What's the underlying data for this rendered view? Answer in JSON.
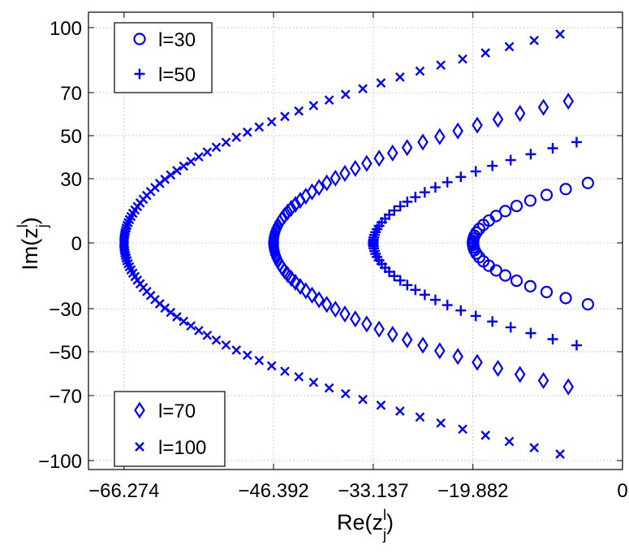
{
  "chart_data": {
    "type": "scatter",
    "title": "",
    "xlabel": {
      "main": "Re(z",
      "sup": "l",
      "sub": "j",
      "close": ")"
    },
    "ylabel": {
      "main": "Im(z",
      "sup": "l",
      "sub": "j",
      "close": ")"
    },
    "xlim": [
      -71,
      0
    ],
    "ylim": [
      -104,
      104
    ],
    "xticks": [
      -66.274,
      -46.392,
      -33.137,
      -19.882,
      0
    ],
    "xtick_labels": [
      "−66.274",
      "−46.392",
      "−33.137",
      "−19.882",
      "0"
    ],
    "yticks": [
      100,
      70,
      50,
      30,
      0,
      -30,
      -50,
      -70,
      -100
    ],
    "ytick_labels": [
      "100",
      "70",
      "50",
      "30",
      "0",
      "−30",
      "−50",
      "−70",
      "−100"
    ],
    "grid": true,
    "legends": [
      {
        "placement": "top-left",
        "entries": [
          "l=30",
          "l=50"
        ]
      },
      {
        "placement": "bottom-left",
        "entries": [
          "l=70",
          "l=100"
        ]
      }
    ],
    "series": [
      {
        "name": "l=30",
        "marker": "circle",
        "color": "#0000ff",
        "l": 30,
        "vertex_x": -19.882,
        "end_x": -4.6,
        "end_y": 28
      },
      {
        "name": "l=50",
        "marker": "plus",
        "color": "#0000ff",
        "l": 50,
        "vertex_x": -33.137,
        "end_x": -6.1,
        "end_y": 47
      },
      {
        "name": "l=70",
        "marker": "diamond",
        "color": "#0000ff",
        "l": 70,
        "vertex_x": -46.392,
        "end_x": -7.2,
        "end_y": 66
      },
      {
        "name": "l=100",
        "marker": "x",
        "color": "#0000ff",
        "l": 100,
        "vertex_x": -66.274,
        "end_x": -8.3,
        "end_y": 97
      }
    ]
  }
}
